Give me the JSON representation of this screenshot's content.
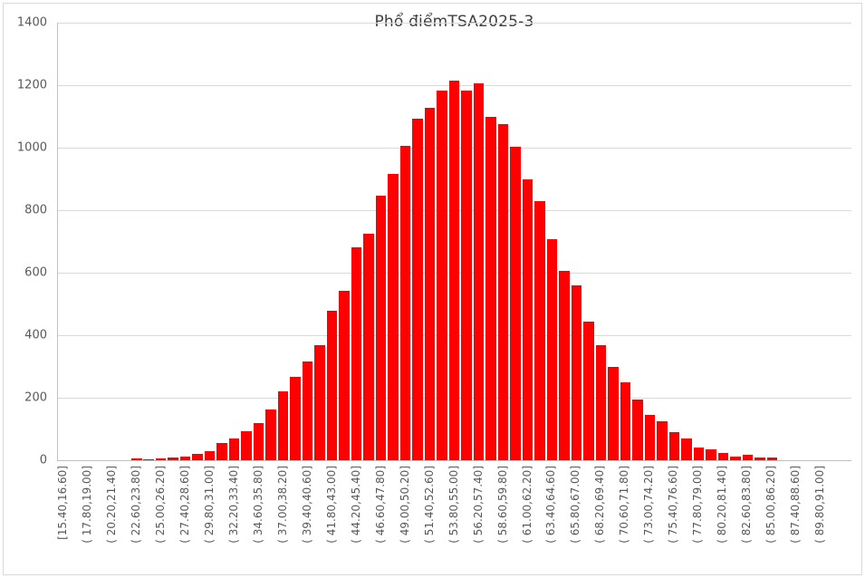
{
  "title": "Phổ điểmTSA2025-3",
  "chart_data": {
    "type": "bar",
    "title": "Phổ điểmTSA2025-3",
    "xlabel": "",
    "ylabel": "",
    "ylim": [
      0,
      1400
    ],
    "y_ticks": [
      "0",
      "200",
      "400",
      "600",
      "800",
      "1000",
      "1200",
      "1400"
    ],
    "grid": "horizontal",
    "legend": "none",
    "bar_color": "#ff0000",
    "grid_color": "#d9d9d9",
    "axis_color": "#bfbfbf",
    "text_color": "#595959",
    "title_color": "#404040",
    "bin_width_value": 1.2,
    "ticks_every_n_bins": 2,
    "x_tick_labels": [
      "[15.40,16.60]",
      "( 17.80,19.00]",
      "( 20.20,21.40]",
      "( 22.60,23.80]",
      "( 25.00,26.20]",
      "( 27.40,28.60]",
      "( 29.80,31.00]",
      "( 32.20,33.40]",
      "( 34.60,35.80]",
      "( 37.00,38.20]",
      "( 39.40,40.60]",
      "( 41.80,43.00]",
      "( 44.20,45.40]",
      "( 46.60,47.80]",
      "( 49.00,50.20]",
      "( 51.40,52.60]",
      "( 53.80,55.00]",
      "( 56.20,57.40]",
      "( 58.60,59.80]",
      "( 61.00,62.20]",
      "( 63.40,64.60]",
      "( 65.80,67.00]",
      "( 68.20,69.40]",
      "( 70.60,71.80]",
      "( 73.00,74.20]",
      "( 75.40,76.60]",
      "( 77.80,79.00]",
      "( 80.20,81.40]",
      "( 82.60,83.80]",
      "( 85.00,86.20]",
      "( 87.40,88.60]",
      "( 89.80,91.00]"
    ],
    "values": [
      0,
      0,
      0,
      0,
      0,
      0,
      5,
      2,
      7,
      9,
      12,
      19,
      30,
      54,
      71,
      94,
      118,
      162,
      220,
      266,
      316,
      367,
      479,
      542,
      682,
      726,
      847,
      915,
      1007,
      1094,
      1129,
      1184,
      1216,
      1184,
      1205,
      1100,
      1076,
      1002,
      900,
      828,
      706,
      605,
      560,
      445,
      367,
      300,
      248,
      195,
      144,
      125,
      91,
      70,
      41,
      36,
      22,
      12,
      18,
      8,
      10,
      0,
      0,
      0,
      0,
      0,
      0
    ]
  }
}
